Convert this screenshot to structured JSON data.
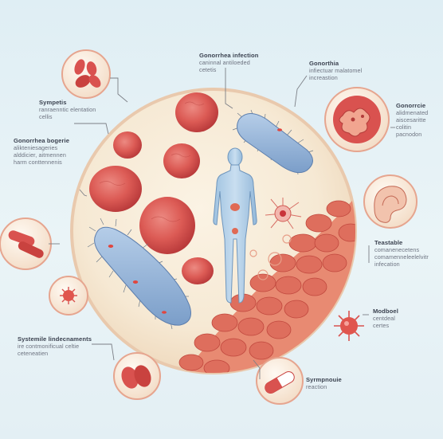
{
  "labels": {
    "inner_top": {
      "title": "Gonorrhea infection",
      "lines": [
        "caninnal antiloeded",
        "cetetis"
      ]
    },
    "top_right": {
      "title": "Gonorthia",
      "lines": [
        "infiectuar malatomel",
        "increastion"
      ]
    },
    "symptoms": {
      "title": "Sympetis",
      "lines": [
        "ranraenntic elentation",
        "cellis"
      ]
    },
    "right_upper": {
      "title": "Gonorrcie",
      "lines": [
        "alidmenated",
        "aiscesaritte",
        "colitin",
        "pacnodon"
      ]
    },
    "left_upper": {
      "title": "Gonorrhea bogerie",
      "lines": [
        "alikteniesageries",
        "alddicier, aitmennen",
        "harm conttennenis"
      ]
    },
    "right_middle": {
      "title": "Teastable",
      "lines": [
        "comanenecetens",
        "comamenneleelelvitr",
        "infecation"
      ]
    },
    "right_lower": {
      "title": "Modboel",
      "lines": [
        "centdeal",
        "certes"
      ]
    },
    "left_lower": {
      "title": "Systemile lindecnaments",
      "lines": [
        "ire contmonificual celtie",
        "ceteneatien"
      ]
    },
    "bottom": {
      "title": "Syrmpnouie",
      "lines": [
        "reaction"
      ]
    }
  },
  "colors": {
    "background": "#e3eff4",
    "disc": "#f6ead6",
    "cell_red": "#d9524f",
    "bacteria_blue": "#8fb3d9",
    "human_figure": "#a9cbe6",
    "leader_line": "#7c7f86"
  },
  "icons": [
    "red-blood-cells-icon",
    "bacterium-icon",
    "spiky-cell-icon",
    "cluster-cell-icon",
    "ear-tissue-icon",
    "capsule-pill-icon",
    "tablet-pills-icon",
    "human-figure-icon"
  ]
}
